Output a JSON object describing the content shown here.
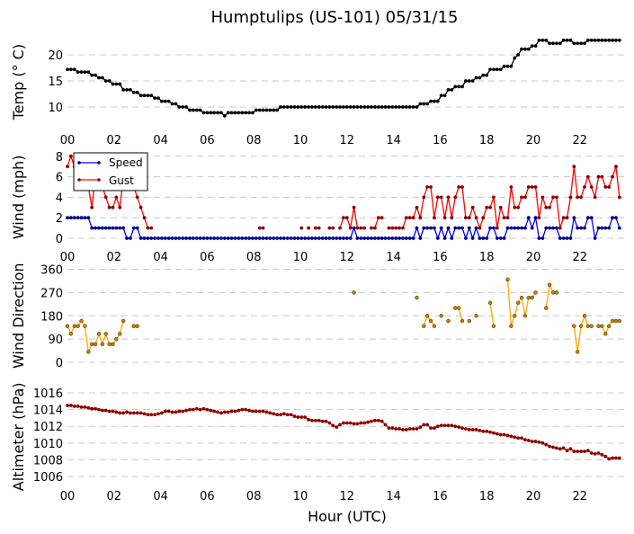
{
  "title": "Humptulips (US-101) 05/31/15",
  "xlabel": "Hour (UTC)",
  "chart_data": {
    "type": "line",
    "title": "Humptulips (US-101) 05/31/15",
    "xlabel": "Hour (UTC)",
    "x_hours": {
      "start": 0,
      "step": 0.15
    },
    "xlim": [
      0,
      24
    ],
    "xtick_values": [
      0,
      2,
      4,
      6,
      8,
      10,
      12,
      14,
      16,
      18,
      20,
      22
    ],
    "xtick_labels": [
      "00",
      "02",
      "04",
      "06",
      "08",
      "10",
      "12",
      "14",
      "16",
      "18",
      "20",
      "22"
    ],
    "grid": "horizontal dashed",
    "panels": [
      {
        "ylabel": "Temp (° C)",
        "ylim": [
          6,
          23.6
        ],
        "yticks": [
          10,
          15,
          20
        ],
        "ytick_labels": [
          "10",
          "15",
          "20"
        ],
        "series": [
          {
            "color": "#000000",
            "marker_color": "#000000",
            "values": [
              17.2,
              17.2,
              17.2,
              16.7,
              16.7,
              16.7,
              16.7,
              16.1,
              16.1,
              15.6,
              15.6,
              15.0,
              15.0,
              14.4,
              14.4,
              14.4,
              13.3,
              13.3,
              13.3,
              12.8,
              12.8,
              12.2,
              12.2,
              12.2,
              12.2,
              11.7,
              11.7,
              11.1,
              11.1,
              11.1,
              10.6,
              10.6,
              10.0,
              10.0,
              10.0,
              9.4,
              9.4,
              9.4,
              9.4,
              8.9,
              8.9,
              8.9,
              8.9,
              8.9,
              8.9,
              8.3,
              8.9,
              8.9,
              8.9,
              8.9,
              8.9,
              8.9,
              8.9,
              8.9,
              9.4,
              9.4,
              9.4,
              9.4,
              9.4,
              9.4,
              9.4,
              10.0,
              10.0,
              10.0,
              10.0,
              10.0,
              10.0,
              10.0,
              10.0,
              10.0,
              10.0,
              10.0,
              10.0,
              10.0,
              10.0,
              10.0,
              10.0,
              10.0,
              10.0,
              10.0,
              10.0,
              10.0,
              10.0,
              10.0,
              10.0,
              10.0,
              10.0,
              10.0,
              10.0,
              10.0,
              10.0,
              10.0,
              10.0,
              10.0,
              10.0,
              10.0,
              10.0,
              10.0,
              10.0,
              10.0,
              10.0,
              10.6,
              10.6,
              10.6,
              11.1,
              11.1,
              11.1,
              12.2,
              12.2,
              13.3,
              13.3,
              13.9,
              13.9,
              13.9,
              15.0,
              15.0,
              15.0,
              15.6,
              15.6,
              16.1,
              16.1,
              17.2,
              17.2,
              17.2,
              17.2,
              17.8,
              17.8,
              17.8,
              19.4,
              20.0,
              21.1,
              21.1,
              21.1,
              21.7,
              21.7,
              22.8,
              22.8,
              22.8,
              22.2,
              22.2,
              22.2,
              22.2,
              22.8,
              22.8,
              22.8,
              22.2,
              22.2,
              22.2,
              22.2,
              22.8,
              22.8,
              22.8,
              22.8,
              22.8,
              22.8,
              22.8,
              22.8,
              22.8,
              22.8
            ]
          }
        ]
      },
      {
        "ylabel": "Wind (mph)",
        "ylim": [
          -0.5,
          8.5
        ],
        "yticks": [
          0,
          2,
          4,
          6,
          8
        ],
        "ytick_labels": [
          "0",
          "2",
          "4",
          "6",
          "8"
        ],
        "legend": "upper-left",
        "series": [
          {
            "name": "Speed",
            "color": "#0000ff",
            "marker_color": "#00008b",
            "values": [
              2,
              2,
              2,
              2,
              2,
              2,
              2,
              1,
              1,
              1,
              1,
              1,
              1,
              1,
              1,
              1,
              1,
              0,
              0,
              1,
              1,
              0,
              0,
              0,
              0,
              0,
              0,
              0,
              0,
              0,
              0,
              0,
              0,
              0,
              0,
              0,
              0,
              0,
              0,
              0,
              0,
              0,
              0,
              0,
              0,
              0,
              0,
              0,
              0,
              0,
              0,
              0,
              0,
              0,
              0,
              0,
              0,
              0,
              0,
              0,
              0,
              0,
              0,
              0,
              0,
              0,
              0,
              0,
              0,
              0,
              0,
              0,
              0,
              0,
              0,
              0,
              0,
              0,
              0,
              0,
              0,
              0,
              1,
              0,
              0,
              0,
              0,
              0,
              0,
              0,
              0,
              0,
              0,
              0,
              0,
              0,
              0,
              0,
              0,
              0,
              1,
              0,
              1,
              1,
              1,
              1,
              0,
              1,
              0,
              1,
              0,
              1,
              1,
              1,
              0,
              1,
              0,
              1,
              0,
              0,
              0,
              1,
              1,
              0,
              0,
              0,
              1,
              1,
              1,
              1,
              1,
              1,
              2,
              1,
              2,
              0,
              0,
              1,
              1,
              1,
              1,
              0,
              0,
              0,
              0,
              2,
              1,
              1,
              1,
              2,
              2,
              0,
              1,
              1,
              1,
              1,
              2,
              2,
              1
            ]
          },
          {
            "name": "Gust",
            "color": "#ff0000",
            "marker_color": "#8b0000",
            "values": [
              7,
              8,
              7,
              6,
              5,
              5,
              5,
              3,
              6,
              5,
              5,
              4,
              3,
              3,
              4,
              3,
              6,
              6,
              5,
              5,
              4,
              3,
              2,
              1,
              1,
              null,
              null,
              null,
              null,
              null,
              null,
              null,
              null,
              null,
              null,
              null,
              null,
              null,
              null,
              null,
              null,
              null,
              null,
              null,
              null,
              null,
              null,
              null,
              null,
              null,
              null,
              null,
              null,
              null,
              null,
              1,
              1,
              null,
              null,
              null,
              null,
              null,
              null,
              null,
              null,
              null,
              null,
              1,
              null,
              1,
              null,
              1,
              1,
              null,
              null,
              1,
              1,
              null,
              1,
              2,
              2,
              1,
              3,
              1,
              1,
              1,
              null,
              1,
              1,
              2,
              2,
              null,
              1,
              1,
              1,
              1,
              1,
              2,
              2,
              2,
              3,
              2,
              4,
              5,
              5,
              2,
              4,
              4,
              2,
              4,
              2,
              4,
              5,
              5,
              2,
              2,
              3,
              2,
              1,
              2,
              3,
              3,
              4,
              1,
              3,
              2,
              2,
              5,
              3,
              3,
              4,
              4,
              5,
              5,
              5,
              2,
              4,
              3,
              3,
              4,
              4,
              1,
              2,
              2,
              4,
              7,
              4,
              4,
              5,
              6,
              5,
              4,
              6,
              6,
              5,
              5,
              6,
              7,
              4
            ]
          }
        ]
      },
      {
        "ylabel": "Wind Direction",
        "ylim": [
          -15,
          375
        ],
        "yticks": [
          0,
          90,
          180,
          270,
          360
        ],
        "ytick_labels": [
          "0",
          "90",
          "180",
          "270",
          "360"
        ],
        "series": [
          {
            "color": "#ffa500",
            "marker_color": "#b8860b",
            "values": [
              140,
              110,
              140,
              140,
              160,
              140,
              40,
              70,
              70,
              110,
              70,
              110,
              70,
              70,
              90,
              110,
              160,
              null,
              null,
              140,
              140,
              null,
              null,
              null,
              null,
              null,
              null,
              null,
              null,
              null,
              null,
              null,
              null,
              null,
              null,
              null,
              null,
              null,
              null,
              null,
              null,
              null,
              null,
              null,
              null,
              null,
              null,
              null,
              null,
              null,
              null,
              null,
              null,
              null,
              null,
              null,
              null,
              null,
              null,
              null,
              null,
              null,
              null,
              null,
              null,
              null,
              null,
              null,
              null,
              null,
              null,
              null,
              null,
              null,
              null,
              null,
              null,
              null,
              null,
              null,
              null,
              null,
              270,
              null,
              null,
              null,
              null,
              null,
              null,
              null,
              null,
              null,
              null,
              null,
              null,
              null,
              null,
              null,
              null,
              null,
              250,
              null,
              140,
              180,
              160,
              140,
              null,
              180,
              null,
              160,
              null,
              210,
              210,
              160,
              null,
              160,
              null,
              180,
              null,
              null,
              null,
              230,
              140,
              null,
              null,
              null,
              320,
              140,
              180,
              230,
              250,
              180,
              250,
              250,
              270,
              null,
              null,
              210,
              300,
              270,
              270,
              null,
              null,
              null,
              null,
              140,
              40,
              140,
              180,
              140,
              140,
              null,
              140,
              140,
              110,
              140,
              160,
              160,
              160
            ]
          }
        ]
      },
      {
        "ylabel": "Altimeter (hPa)",
        "ylim": [
          1005,
          1016.5
        ],
        "yticks": [
          1006,
          1008,
          1010,
          1012,
          1014,
          1016
        ],
        "ytick_labels": [
          "1006",
          "1008",
          "1010",
          "1012",
          "1014",
          "1016"
        ],
        "series": [
          {
            "color": "#ff0000",
            "marker_color": "#8b0000",
            "values": [
              1014.5,
              1014.5,
              1014.4,
              1014.4,
              1014.3,
              1014.3,
              1014.2,
              1014.1,
              1014.1,
              1014.0,
              1013.9,
              1013.9,
              1013.8,
              1013.8,
              1013.7,
              1013.6,
              1013.6,
              1013.7,
              1013.6,
              1013.6,
              1013.6,
              1013.6,
              1013.5,
              1013.4,
              1013.4,
              1013.4,
              1013.5,
              1013.6,
              1013.8,
              1013.8,
              1013.7,
              1013.7,
              1013.8,
              1013.8,
              1013.9,
              1014.0,
              1014.0,
              1014.1,
              1014.0,
              1014.1,
              1014.0,
              1013.9,
              1013.8,
              1013.7,
              1013.6,
              1013.7,
              1013.7,
              1013.8,
              1013.8,
              1013.9,
              1014.0,
              1014.0,
              1013.9,
              1013.8,
              1013.8,
              1013.8,
              1013.8,
              1013.7,
              1013.6,
              1013.5,
              1013.4,
              1013.4,
              1013.5,
              1013.4,
              1013.4,
              1013.2,
              1013.1,
              1013.1,
              1013.1,
              1012.8,
              1012.7,
              1012.7,
              1012.7,
              1012.6,
              1012.6,
              1012.4,
              1012.1,
              1011.9,
              1012.2,
              1012.4,
              1012.4,
              1012.4,
              1012.3,
              1012.3,
              1012.4,
              1012.4,
              1012.5,
              1012.6,
              1012.7,
              1012.7,
              1012.6,
              1012.2,
              1011.8,
              1011.8,
              1011.7,
              1011.7,
              1011.6,
              1011.6,
              1011.7,
              1011.7,
              1011.7,
              1011.9,
              1012.2,
              1012.2,
              1011.8,
              1011.8,
              1012.0,
              1012.1,
              1012.1,
              1012.1,
              1012.1,
              1012.0,
              1011.9,
              1011.8,
              1011.7,
              1011.6,
              1011.6,
              1011.6,
              1011.5,
              1011.4,
              1011.4,
              1011.3,
              1011.2,
              1011.1,
              1011.0,
              1011.0,
              1010.9,
              1010.8,
              1010.7,
              1010.6,
              1010.6,
              1010.4,
              1010.3,
              1010.2,
              1010.2,
              1010.1,
              1010.0,
              1009.8,
              1009.6,
              1009.5,
              1009.4,
              1009.3,
              1009.4,
              1009.1,
              1009.3,
              1009.0,
              1009.0,
              1009.0,
              1009.0,
              1009.1,
              1008.8,
              1008.7,
              1008.8,
              1008.6,
              1008.4,
              1008.1,
              1008.2,
              1008.2,
              1008.2
            ]
          }
        ]
      }
    ]
  }
}
